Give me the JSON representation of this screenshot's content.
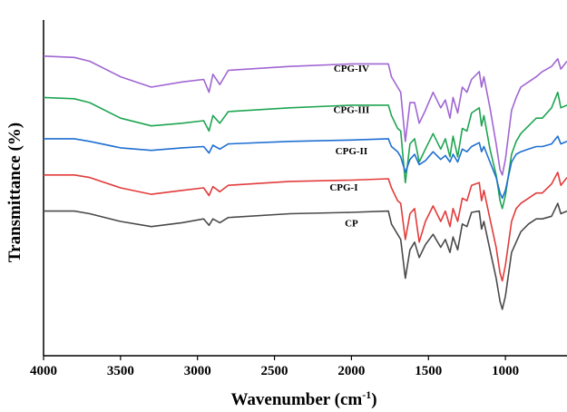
{
  "chart_data": {
    "type": "line",
    "xlabel": "Wavenumber (cm",
    "xlabel_superscript": "-1",
    "xlabel_suffix": ")",
    "ylabel": "Transmittance (%)",
    "xlim": [
      4000,
      600
    ],
    "x_reversed": true,
    "x_ticks": [
      4000,
      3500,
      3000,
      2500,
      2000,
      1500,
      1000
    ],
    "y_ticks_shown": false,
    "grid": false,
    "series_note": "traces are offset vertically; y is relative transmittance in arbitrary units",
    "series": [
      {
        "name": "CPG-IV",
        "color": "#a066d3",
        "baseline": 6,
        "points": [
          [
            4000,
            0
          ],
          [
            3800,
            -0.05
          ],
          [
            3700,
            -0.2
          ],
          [
            3500,
            -0.8
          ],
          [
            3300,
            -1.2
          ],
          [
            3100,
            -1.0
          ],
          [
            2960,
            -0.9
          ],
          [
            2925,
            -1.4
          ],
          [
            2900,
            -0.7
          ],
          [
            2855,
            -1.1
          ],
          [
            2800,
            -0.55
          ],
          [
            2400,
            -0.4
          ],
          [
            2000,
            -0.3
          ],
          [
            1760,
            -0.3
          ],
          [
            1740,
            -0.8
          ],
          [
            1700,
            -1.2
          ],
          [
            1680,
            -1.4
          ],
          [
            1650,
            -3.3
          ],
          [
            1620,
            -1.8
          ],
          [
            1590,
            -1.8
          ],
          [
            1560,
            -2.6
          ],
          [
            1520,
            -2.1
          ],
          [
            1470,
            -1.4
          ],
          [
            1420,
            -2.0
          ],
          [
            1390,
            -1.7
          ],
          [
            1360,
            -2.4
          ],
          [
            1340,
            -1.6
          ],
          [
            1310,
            -2.2
          ],
          [
            1280,
            -1.2
          ],
          [
            1250,
            -1.4
          ],
          [
            1220,
            -0.9
          ],
          [
            1170,
            -0.6
          ],
          [
            1155,
            -1.2
          ],
          [
            1140,
            -0.8
          ],
          [
            1100,
            -2.0
          ],
          [
            1060,
            -3.4
          ],
          [
            1035,
            -4.4
          ],
          [
            1020,
            -4.6
          ],
          [
            1000,
            -4.0
          ],
          [
            960,
            -2.1
          ],
          [
            930,
            -1.6
          ],
          [
            900,
            -1.2
          ],
          [
            850,
            -1.0
          ],
          [
            800,
            -0.8
          ],
          [
            760,
            -0.6
          ],
          [
            700,
            -0.4
          ],
          [
            660,
            -0.1
          ],
          [
            640,
            -0.5
          ],
          [
            600,
            -0.2
          ]
        ]
      },
      {
        "name": "CPG-III",
        "color": "#1ea552",
        "baseline": 4.4,
        "points": [
          [
            4000,
            0
          ],
          [
            3800,
            -0.05
          ],
          [
            3700,
            -0.2
          ],
          [
            3500,
            -0.8
          ],
          [
            3300,
            -1.1
          ],
          [
            3100,
            -1.0
          ],
          [
            2960,
            -0.9
          ],
          [
            2925,
            -1.3
          ],
          [
            2900,
            -0.7
          ],
          [
            2855,
            -1.0
          ],
          [
            2800,
            -0.55
          ],
          [
            2400,
            -0.4
          ],
          [
            2000,
            -0.3
          ],
          [
            1760,
            -0.3
          ],
          [
            1740,
            -0.7
          ],
          [
            1700,
            -1.2
          ],
          [
            1680,
            -1.3
          ],
          [
            1650,
            -3.3
          ],
          [
            1620,
            -1.8
          ],
          [
            1590,
            -1.6
          ],
          [
            1560,
            -2.5
          ],
          [
            1520,
            -2.0
          ],
          [
            1470,
            -1.4
          ],
          [
            1420,
            -2.0
          ],
          [
            1390,
            -1.6
          ],
          [
            1360,
            -2.3
          ],
          [
            1340,
            -1.5
          ],
          [
            1310,
            -2.3
          ],
          [
            1280,
            -1.2
          ],
          [
            1250,
            -1.3
          ],
          [
            1220,
            -0.6
          ],
          [
            1170,
            -0.4
          ],
          [
            1155,
            -1.1
          ],
          [
            1140,
            -0.7
          ],
          [
            1100,
            -2.0
          ],
          [
            1060,
            -3.0
          ],
          [
            1035,
            -4.0
          ],
          [
            1020,
            -4.3
          ],
          [
            1000,
            -3.8
          ],
          [
            960,
            -2.2
          ],
          [
            930,
            -1.7
          ],
          [
            900,
            -1.4
          ],
          [
            850,
            -1.1
          ],
          [
            800,
            -0.8
          ],
          [
            760,
            -0.8
          ],
          [
            700,
            -0.4
          ],
          [
            660,
            0.2
          ],
          [
            640,
            -0.4
          ],
          [
            600,
            -0.3
          ]
        ]
      },
      {
        "name": "CPG-II",
        "color": "#1f6fd1",
        "baseline": 2.8,
        "points": [
          [
            4000,
            0
          ],
          [
            3800,
            0
          ],
          [
            3700,
            -0.1
          ],
          [
            3500,
            -0.35
          ],
          [
            3300,
            -0.45
          ],
          [
            3100,
            -0.35
          ],
          [
            2960,
            -0.3
          ],
          [
            2925,
            -0.55
          ],
          [
            2900,
            -0.25
          ],
          [
            2855,
            -0.4
          ],
          [
            2800,
            -0.2
          ],
          [
            2400,
            -0.1
          ],
          [
            2000,
            -0.05
          ],
          [
            1760,
            0
          ],
          [
            1740,
            -0.3
          ],
          [
            1700,
            -0.5
          ],
          [
            1680,
            -0.7
          ],
          [
            1650,
            -1.3
          ],
          [
            1620,
            -0.8
          ],
          [
            1590,
            -0.6
          ],
          [
            1560,
            -1.0
          ],
          [
            1520,
            -0.85
          ],
          [
            1470,
            -0.5
          ],
          [
            1420,
            -0.8
          ],
          [
            1390,
            -0.65
          ],
          [
            1360,
            -0.9
          ],
          [
            1340,
            -0.6
          ],
          [
            1310,
            -0.9
          ],
          [
            1280,
            -0.4
          ],
          [
            1250,
            -0.5
          ],
          [
            1220,
            -0.3
          ],
          [
            1170,
            -0.15
          ],
          [
            1155,
            -0.5
          ],
          [
            1140,
            -0.3
          ],
          [
            1100,
            -0.9
          ],
          [
            1060,
            -1.5
          ],
          [
            1035,
            -2.1
          ],
          [
            1020,
            -2.3
          ],
          [
            1000,
            -2.0
          ],
          [
            960,
            -0.9
          ],
          [
            930,
            -0.6
          ],
          [
            900,
            -0.5
          ],
          [
            850,
            -0.4
          ],
          [
            800,
            -0.3
          ],
          [
            760,
            -0.3
          ],
          [
            700,
            -0.2
          ],
          [
            660,
            0.1
          ],
          [
            640,
            -0.2
          ],
          [
            600,
            -0.1
          ]
        ]
      },
      {
        "name": "CPG-I",
        "color": "#e23b3b",
        "baseline": 1.4,
        "points": [
          [
            4000,
            0
          ],
          [
            3800,
            0
          ],
          [
            3700,
            -0.1
          ],
          [
            3500,
            -0.5
          ],
          [
            3300,
            -0.75
          ],
          [
            3100,
            -0.6
          ],
          [
            2960,
            -0.5
          ],
          [
            2925,
            -0.8
          ],
          [
            2900,
            -0.45
          ],
          [
            2855,
            -0.65
          ],
          [
            2800,
            -0.4
          ],
          [
            2400,
            -0.25
          ],
          [
            2000,
            -0.2
          ],
          [
            1760,
            -0.15
          ],
          [
            1740,
            -0.5
          ],
          [
            1700,
            -1.0
          ],
          [
            1680,
            -1.1
          ],
          [
            1650,
            -2.5
          ],
          [
            1620,
            -1.5
          ],
          [
            1590,
            -1.3
          ],
          [
            1560,
            -2.6
          ],
          [
            1520,
            -1.8
          ],
          [
            1470,
            -1.2
          ],
          [
            1420,
            -1.8
          ],
          [
            1390,
            -1.4
          ],
          [
            1360,
            -2.0
          ],
          [
            1340,
            -1.3
          ],
          [
            1310,
            -1.8
          ],
          [
            1280,
            -0.9
          ],
          [
            1250,
            -1.0
          ],
          [
            1220,
            -0.4
          ],
          [
            1170,
            -0.3
          ],
          [
            1155,
            -1.0
          ],
          [
            1140,
            -0.6
          ],
          [
            1100,
            -1.7
          ],
          [
            1060,
            -2.8
          ],
          [
            1035,
            -3.8
          ],
          [
            1020,
            -4.1
          ],
          [
            1000,
            -3.5
          ],
          [
            960,
            -1.8
          ],
          [
            930,
            -1.3
          ],
          [
            900,
            -1.1
          ],
          [
            850,
            -0.9
          ],
          [
            800,
            -0.7
          ],
          [
            760,
            -0.7
          ],
          [
            700,
            -0.35
          ],
          [
            660,
            0.1
          ],
          [
            640,
            -0.4
          ],
          [
            600,
            -0.1
          ]
        ]
      },
      {
        "name": "CP",
        "color": "#4a4a4a",
        "baseline": 0,
        "points": [
          [
            4000,
            0
          ],
          [
            3800,
            0
          ],
          [
            3700,
            -0.1
          ],
          [
            3500,
            -0.4
          ],
          [
            3300,
            -0.6
          ],
          [
            3100,
            -0.45
          ],
          [
            2960,
            -0.3
          ],
          [
            2925,
            -0.55
          ],
          [
            2900,
            -0.3
          ],
          [
            2855,
            -0.45
          ],
          [
            2800,
            -0.25
          ],
          [
            2400,
            -0.1
          ],
          [
            2000,
            -0.05
          ],
          [
            1760,
            0
          ],
          [
            1740,
            -0.5
          ],
          [
            1700,
            -0.9
          ],
          [
            1680,
            -1.1
          ],
          [
            1650,
            -2.6
          ],
          [
            1620,
            -1.5
          ],
          [
            1590,
            -1.2
          ],
          [
            1560,
            -1.8
          ],
          [
            1520,
            -1.3
          ],
          [
            1470,
            -0.9
          ],
          [
            1420,
            -1.4
          ],
          [
            1390,
            -1.1
          ],
          [
            1360,
            -1.6
          ],
          [
            1340,
            -1.0
          ],
          [
            1310,
            -1.5
          ],
          [
            1280,
            -0.5
          ],
          [
            1250,
            -0.6
          ],
          [
            1220,
            -0.05
          ],
          [
            1170,
            0
          ],
          [
            1155,
            -0.7
          ],
          [
            1140,
            -0.4
          ],
          [
            1100,
            -1.5
          ],
          [
            1060,
            -2.6
          ],
          [
            1035,
            -3.5
          ],
          [
            1020,
            -3.8
          ],
          [
            1000,
            -3.3
          ],
          [
            960,
            -1.6
          ],
          [
            930,
            -1.2
          ],
          [
            900,
            -0.8
          ],
          [
            850,
            -0.5
          ],
          [
            800,
            -0.3
          ],
          [
            760,
            -0.3
          ],
          [
            700,
            -0.2
          ],
          [
            660,
            0.3
          ],
          [
            640,
            -0.1
          ],
          [
            600,
            0
          ]
        ]
      }
    ],
    "series_labels": [
      {
        "text": "CPG-IV",
        "x": 2000,
        "series": "CPG-IV"
      },
      {
        "text": "CPG-III",
        "x": 2000,
        "series": "CPG-III"
      },
      {
        "text": "CPG-II",
        "x": 2000,
        "series": "CPG-II"
      },
      {
        "text": "CPG-I",
        "x": 2050,
        "series": "CPG-I"
      },
      {
        "text": "CP",
        "x": 2000,
        "series": "CP"
      }
    ]
  }
}
